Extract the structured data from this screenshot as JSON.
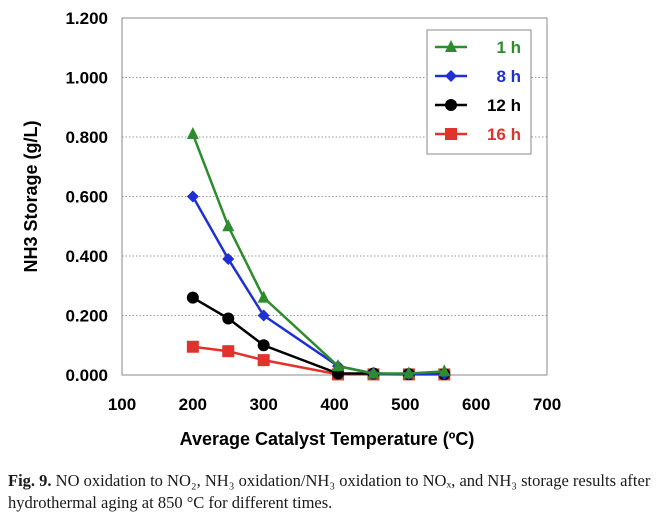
{
  "chart_data": {
    "type": "line",
    "xlabel": "Average Catalyst Temperature (ºC)",
    "ylabel": "NH3 Storage (g/L)",
    "xlim": [
      100,
      700
    ],
    "ylim": [
      0,
      1.2
    ],
    "xticks": [
      "100",
      "200",
      "300",
      "400",
      "500",
      "600",
      "700"
    ],
    "yticks": [
      "0.000",
      "0.200",
      "0.400",
      "0.600",
      "0.800",
      "1.000",
      "1.200"
    ],
    "grid": "horizontal dotted",
    "legend_position": "top-right",
    "series": [
      {
        "name": "1 h",
        "color": "#2e8b2e",
        "marker": "triangle",
        "x": [
          200,
          250,
          300,
          405,
          455,
          505,
          555
        ],
        "y": [
          0.81,
          0.5,
          0.26,
          0.03,
          0.005,
          0.005,
          0.012
        ]
      },
      {
        "name": "8 h",
        "color": "#1f2fd6",
        "marker": "diamond",
        "x": [
          200,
          250,
          300,
          405,
          455,
          505,
          555
        ],
        "y": [
          0.6,
          0.39,
          0.2,
          0.03,
          0.005,
          0.003,
          0.003
        ]
      },
      {
        "name": "12 h",
        "color": "#000000",
        "marker": "circle",
        "x": [
          200,
          250,
          300,
          405,
          455,
          505,
          555
        ],
        "y": [
          0.26,
          0.19,
          0.1,
          0.005,
          0.005,
          0.003,
          0.003
        ]
      },
      {
        "name": "16 h",
        "color": "#e0332b",
        "marker": "square",
        "x": [
          200,
          250,
          300,
          405,
          455,
          505,
          555
        ],
        "y": [
          0.095,
          0.08,
          0.05,
          0.002,
          0.002,
          0.002,
          0.002
        ]
      }
    ]
  },
  "caption": {
    "fig_no": "Fig. 9.",
    "text": " NO oxidation to NO₂, NH₃ oxidation/NH₃ oxidation to NOₓ, and NH₃ storage results after hydrothermal aging at 850 °C for different times."
  }
}
